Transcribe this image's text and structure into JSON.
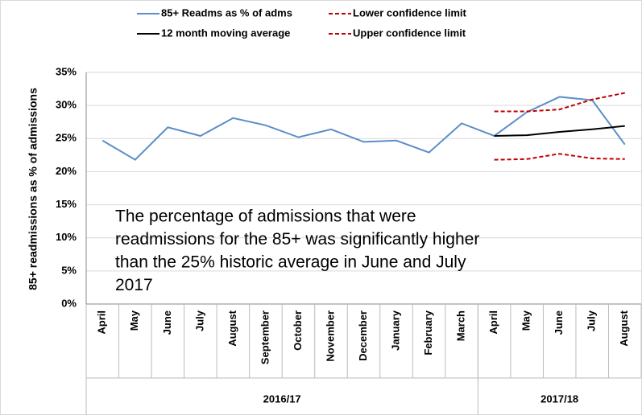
{
  "chart_data": {
    "type": "line",
    "y_axis_label": "85+ readmissions as % of admissions",
    "annotation": [
      "The percentage of admissions that were",
      "readmissions for the 85+ was  significantly higher",
      "than the 25% historic average in June and July",
      "2017"
    ],
    "categories": [
      "April",
      "May",
      "June",
      "July",
      "August",
      "September",
      "October",
      "November",
      "December",
      "January",
      "February",
      "March",
      "April",
      "May",
      "June",
      "July",
      "August"
    ],
    "groups": [
      {
        "label": "2016/17",
        "span": 12
      },
      {
        "label": "2017/18",
        "span": 5
      }
    ],
    "series": [
      {
        "name": "85+ Readms as % of adms",
        "color": "#5b8ec9",
        "dashed": false,
        "values": [
          24.7,
          21.8,
          26.7,
          25.4,
          28.1,
          27.0,
          25.2,
          26.4,
          24.5,
          24.7,
          22.9,
          27.3,
          25.4,
          29.0,
          31.3,
          30.8,
          24.1
        ]
      },
      {
        "name": "Lower confidence limit",
        "color": "#c00000",
        "dashed": true,
        "values": [
          null,
          null,
          null,
          null,
          null,
          null,
          null,
          null,
          null,
          null,
          null,
          null,
          21.8,
          21.9,
          22.7,
          22.0,
          21.9
        ]
      },
      {
        "name": "12 month moving average",
        "color": "#000000",
        "dashed": false,
        "values": [
          null,
          null,
          null,
          null,
          null,
          null,
          null,
          null,
          null,
          null,
          null,
          null,
          25.4,
          25.5,
          26.0,
          26.4,
          26.9
        ]
      },
      {
        "name": "Upper confidence limit",
        "color": "#c00000",
        "dashed": true,
        "values": [
          null,
          null,
          null,
          null,
          null,
          null,
          null,
          null,
          null,
          null,
          null,
          null,
          29.1,
          29.1,
          29.4,
          30.9,
          31.9
        ]
      }
    ],
    "ylim": [
      0,
      35
    ],
    "yticks": [
      {
        "value": 0,
        "label": "0%"
      },
      {
        "value": 5,
        "label": "5%"
      },
      {
        "value": 10,
        "label": "10%"
      },
      {
        "value": 15,
        "label": "15%"
      },
      {
        "value": 20,
        "label": "20%"
      },
      {
        "value": 25,
        "label": "25%"
      },
      {
        "value": 30,
        "label": "30%"
      },
      {
        "value": 35,
        "label": "35%"
      }
    ],
    "grid": true
  }
}
